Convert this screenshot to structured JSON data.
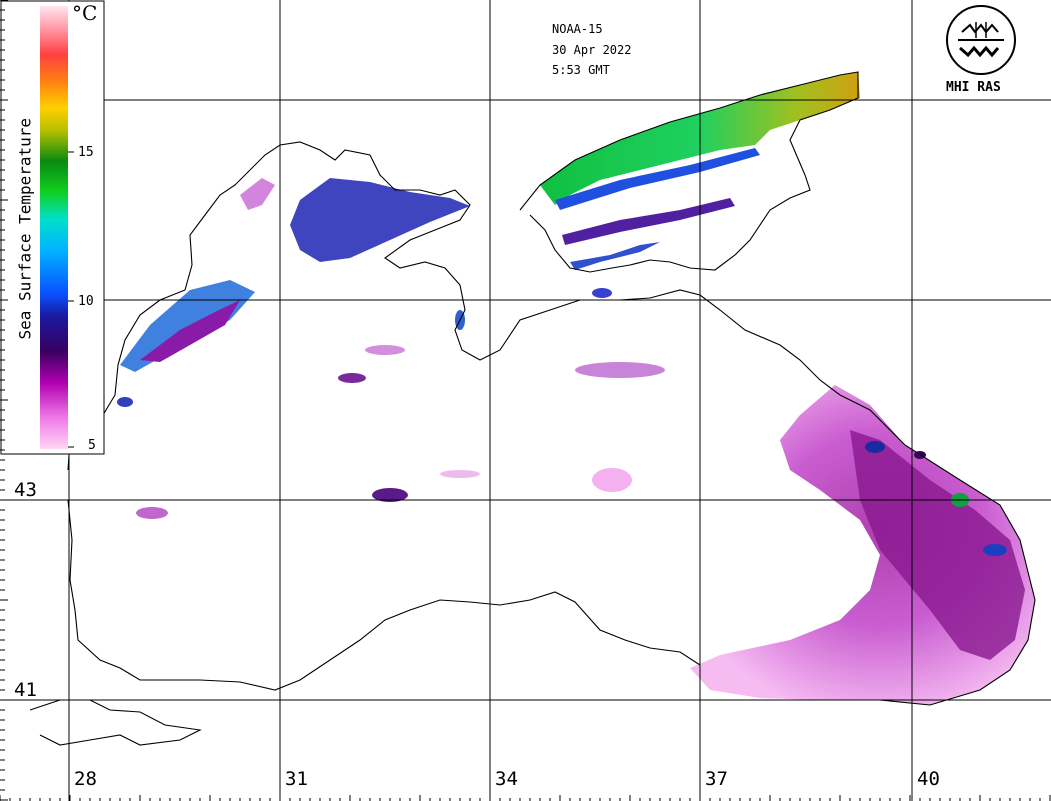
{
  "header": {
    "satellite": "NOAA-15",
    "date": "30 Apr 2022",
    "time": "5:53 GMT"
  },
  "logo": {
    "text": "MHI RAS"
  },
  "legend": {
    "unit": "°C",
    "title": "Sea Surface Temperature",
    "ticks": [
      "15",
      "10",
      "5"
    ],
    "tick_values": [
      15,
      10,
      5
    ],
    "range": [
      5,
      20
    ],
    "colors": [
      "#ffd0f0",
      "#ee66ee",
      "#b000b0",
      "#3a0060",
      "#1a1aa0",
      "#0a50ff",
      "#00b4ff",
      "#00e0c8",
      "#10d020",
      "#0a8a10",
      "#b8c000",
      "#ffd000",
      "#ff8010",
      "#ff4040",
      "#ff9aa8",
      "#ffe6ee"
    ]
  },
  "axes": {
    "lon_labels": [
      "28",
      "31",
      "34",
      "37",
      "40"
    ],
    "lat_labels": [
      "43",
      "41"
    ]
  },
  "colors": {
    "coastline": "#000000",
    "grid": "#000000",
    "cloud_free_sea": "#ffffff"
  }
}
